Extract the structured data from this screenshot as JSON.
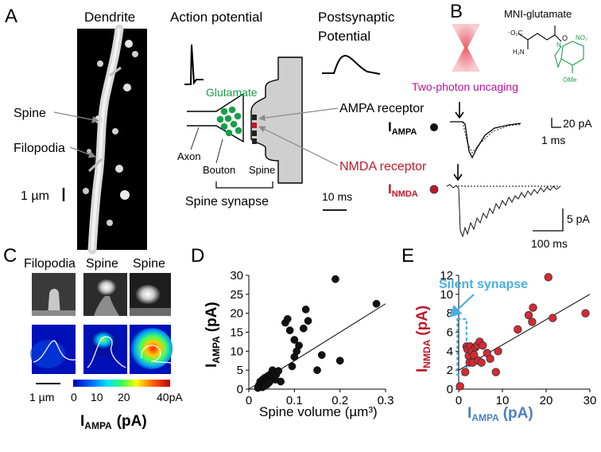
{
  "panels": {
    "A": {
      "letter": "A",
      "dendrite_title": "Dendrite",
      "spine_label": "Spine",
      "filopodia_label": "Filopodia",
      "scale_label": "1 µm",
      "ap_title": "Action potential",
      "psp_title_line1": "Postsynaptic",
      "psp_title_line2": "Potential",
      "glutamate_label": "Glutamate",
      "axon_label": "Axon",
      "bouton_label": "Bouton",
      "spine_small_label": "Spine",
      "spine_synapse_label": "Spine synapse",
      "ampa_receptor_label": "AMPA receptor",
      "nmda_receptor_label": "NMDA receptor",
      "time_scale_label": "10 ms"
    },
    "B": {
      "letter": "B",
      "mni_label": "MNI-glutamate",
      "two_photon_label": "Two-photon uncaging",
      "i_ampa_main": "I",
      "i_ampa_sub": "AMPA",
      "i_nmda_main": "I",
      "i_nmda_sub": "NMDA",
      "ampa_scale_y": "20 pA",
      "ampa_scale_x": "1 ms",
      "nmda_scale_y": "5 pA",
      "nmda_scale_x": "100 ms",
      "chem_co2": "⁻O₂C",
      "chem_h2n": "H₂N",
      "chem_o": "O",
      "chem_n": "N",
      "chem_no2": "NO₂",
      "chem_ome": "OMe"
    },
    "C": {
      "letter": "C",
      "col1": "Filopodia",
      "col2": "Spine",
      "col3": "Spine",
      "scale_label": "1 µm",
      "colorbar_ticks": [
        "0",
        "10",
        "20",
        "40pA"
      ],
      "colorbar_title_main": "I",
      "colorbar_title_sub": "AMPA",
      "colorbar_title_unit": "(pA)"
    },
    "D": {
      "letter": "D",
      "ylabel_main": "I",
      "ylabel_sub": "AMPA",
      "ylabel_unit": "(pA)",
      "xlabel": "Spine volume (µm³)",
      "x_ticks": [
        "0",
        "0.1",
        "0.2",
        "0.3"
      ],
      "y_ticks": [
        "0",
        "5",
        "10",
        "15",
        "20",
        "25",
        "30"
      ]
    },
    "E": {
      "letter": "E",
      "silent_label": "Silent synapse",
      "ylabel_main": "I",
      "ylabel_sub": "NMDA",
      "ylabel_unit": "(pA)",
      "xlabel_main": "I",
      "xlabel_sub": "AMPA",
      "xlabel_unit": "(pA)",
      "x_ticks": [
        "0",
        "10",
        "20",
        "30"
      ],
      "y_ticks": [
        "0",
        "2",
        "4",
        "6",
        "8",
        "10",
        "12"
      ]
    }
  },
  "colors": {
    "green": "#1a9e4a",
    "red": "#c0182a",
    "magenta": "#c0109a",
    "blue": "#4a7fc4",
    "light_blue": "#4aaee0",
    "gray": "#cfcfcf",
    "pink": "#f29aa2"
  },
  "chart_data": [
    {
      "panel": "D",
      "type": "scatter",
      "xlabel": "Spine volume (µm³)",
      "ylabel": "IAMPA (pA)",
      "xlim": [
        0,
        0.3
      ],
      "ylim": [
        0,
        30
      ],
      "points": [
        [
          0.02,
          0.3
        ],
        [
          0.022,
          1.0
        ],
        [
          0.025,
          2.0
        ],
        [
          0.028,
          1.5
        ],
        [
          0.03,
          2.5
        ],
        [
          0.032,
          0.8
        ],
        [
          0.035,
          3.0
        ],
        [
          0.038,
          2.0
        ],
        [
          0.04,
          1.2
        ],
        [
          0.042,
          3.5
        ],
        [
          0.045,
          2.8
        ],
        [
          0.048,
          4.0
        ],
        [
          0.05,
          3.2
        ],
        [
          0.052,
          5.0
        ],
        [
          0.055,
          4.5
        ],
        [
          0.058,
          2.5
        ],
        [
          0.06,
          3.8
        ],
        [
          0.065,
          4.8
        ],
        [
          0.03,
          0.5
        ],
        [
          0.035,
          1.0
        ],
        [
          0.045,
          1.8
        ],
        [
          0.07,
          2.0
        ],
        [
          0.08,
          17.5
        ],
        [
          0.085,
          18.5
        ],
        [
          0.09,
          15.5
        ],
        [
          0.1,
          13.0
        ],
        [
          0.1,
          8.5
        ],
        [
          0.095,
          6.0
        ],
        [
          0.105,
          10.0
        ],
        [
          0.11,
          11.5
        ],
        [
          0.12,
          16.0
        ],
        [
          0.125,
          21.0
        ],
        [
          0.13,
          18.0
        ],
        [
          0.15,
          5.0
        ],
        [
          0.16,
          9.0
        ],
        [
          0.19,
          29.0
        ],
        [
          0.2,
          7.5
        ],
        [
          0.28,
          22.5
        ]
      ],
      "fit_line": [
        [
          0.0,
          0.0
        ],
        [
          0.3,
          22.5
        ]
      ]
    },
    {
      "panel": "E",
      "type": "scatter",
      "xlabel": "IAMPA (pA)",
      "ylabel": "INMDA (pA)",
      "xlim": [
        0,
        30
      ],
      "ylim": [
        0,
        12
      ],
      "points": [
        [
          0.3,
          0.3
        ],
        [
          1.5,
          1.8
        ],
        [
          1.8,
          4.5
        ],
        [
          2.0,
          4.2
        ],
        [
          2.3,
          3.5
        ],
        [
          2.5,
          2.8
        ],
        [
          2.6,
          4.5
        ],
        [
          3.0,
          4.0
        ],
        [
          3.2,
          2.8
        ],
        [
          3.5,
          3.6
        ],
        [
          3.8,
          4.4
        ],
        [
          4.2,
          4.6
        ],
        [
          4.5,
          3.0
        ],
        [
          4.8,
          5.0
        ],
        [
          5.2,
          2.8
        ],
        [
          5.5,
          4.6
        ],
        [
          6.5,
          3.8
        ],
        [
          7.2,
          3.2
        ],
        [
          8.5,
          1.8
        ],
        [
          9.0,
          4.0
        ],
        [
          13.5,
          6.3
        ],
        [
          16.0,
          7.8
        ],
        [
          16.8,
          7.1
        ],
        [
          17.0,
          8.6
        ],
        [
          20.5,
          11.8
        ],
        [
          21.5,
          7.5
        ],
        [
          29.0,
          8.0
        ]
      ],
      "fit_line": [
        [
          0.0,
          2.0
        ],
        [
          30.0,
          10.0
        ]
      ],
      "silent_box": {
        "xlim": [
          -0.3,
          1.8
        ],
        "ylim": [
          1.5,
          7.4
        ]
      }
    }
  ]
}
